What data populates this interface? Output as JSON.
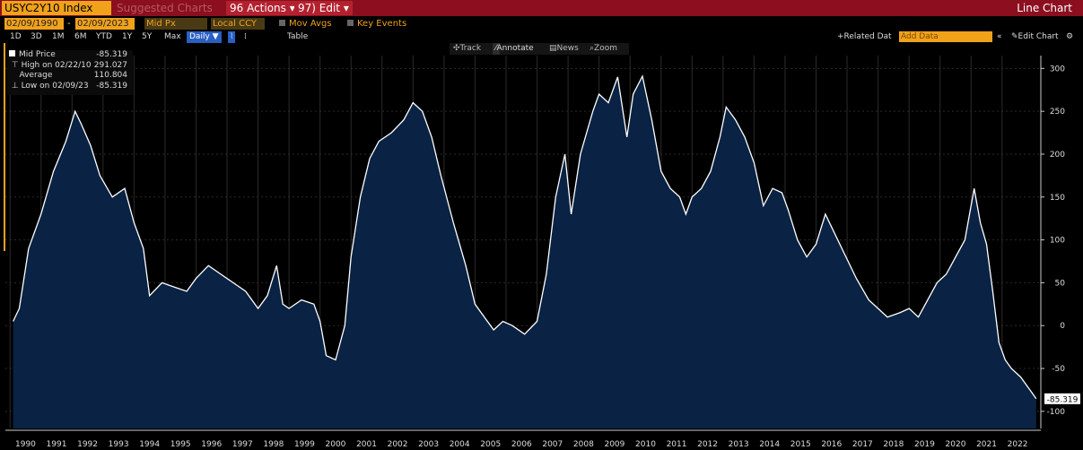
{
  "titlebar": {
    "ticker": "USYC2Y10 Index",
    "suggested": "Suggested Charts",
    "actions": "96 Actions ▾",
    "edit": "97) Edit ▾",
    "window_title": "Line Chart"
  },
  "controls": {
    "start_date": "02/09/1990",
    "end_date": "02/09/2023",
    "field": "Mid Px",
    "currency": "Local CCY",
    "mov_avgs": "Mov Avgs",
    "key_events": "Key Events",
    "ranges": [
      "1D",
      "3D",
      "1M",
      "6M",
      "YTD",
      "1Y",
      "5Y",
      "Max"
    ],
    "frequency": "Daily ▼",
    "table": "Table",
    "related_data": "Related Dat",
    "add_data_placeholder": "Add Data",
    "edit_chart": "Edit Chart"
  },
  "chart_tools": {
    "track": "Track",
    "annotate": "Annotate",
    "news": "News",
    "zoom": "Zoom"
  },
  "legend": {
    "mid_price_label": "Mid Price",
    "mid_price_value": "-85.319",
    "high_label": "High on 02/22/10",
    "high_value": "291.027",
    "average_label": "Average",
    "average_value": "110.804",
    "low_label": "Low on 02/09/23",
    "low_value": "-85.319"
  },
  "last_value_tag": "-85.319",
  "colors": {
    "titlebar": "#8b0f1f",
    "accent_orange": "#f0a21b",
    "area_fill": "#0a2344",
    "line": "#ffffff",
    "grid": "#2b2b2b"
  },
  "chart_data": {
    "type": "area",
    "series": [
      {
        "name": "Mid Price",
        "x": [
          1990.1,
          1990.3,
          1990.6,
          1991.0,
          1991.4,
          1991.8,
          1992.1,
          1992.3,
          1992.6,
          1992.9,
          1993.3,
          1993.7,
          1994.0,
          1994.3,
          1994.5,
          1994.9,
          1995.3,
          1995.7,
          1996.0,
          1996.4,
          1996.8,
          1997.2,
          1997.6,
          1998.0,
          1998.3,
          1998.6,
          1998.8,
          1999.0,
          1999.4,
          1999.8,
          2000.0,
          2000.2,
          2000.5,
          2000.8,
          2001.0,
          2001.3,
          2001.6,
          2001.9,
          2002.3,
          2002.7,
          2003.0,
          2003.3,
          2003.6,
          2003.9,
          2004.3,
          2004.7,
          2005.0,
          2005.3,
          2005.6,
          2005.9,
          2006.2,
          2006.6,
          2007.0,
          2007.3,
          2007.6,
          2007.9,
          2008.1,
          2008.4,
          2008.8,
          2009.0,
          2009.3,
          2009.6,
          2009.9,
          2010.1,
          2010.4,
          2010.7,
          2011.0,
          2011.3,
          2011.6,
          2011.8,
          2012.0,
          2012.3,
          2012.6,
          2012.9,
          2013.1,
          2013.4,
          2013.7,
          2014.0,
          2014.3,
          2014.6,
          2014.9,
          2015.1,
          2015.4,
          2015.7,
          2016.0,
          2016.3,
          2016.5,
          2016.9,
          2017.3,
          2017.7,
          2018.0,
          2018.3,
          2018.7,
          2019.0,
          2019.3,
          2019.6,
          2019.9,
          2020.2,
          2020.5,
          2020.8,
          2021.1,
          2021.3,
          2021.5,
          2021.7,
          2021.9,
          2022.1,
          2022.3,
          2022.6,
          2022.9,
          2023.1
        ],
        "y": [
          5,
          20,
          90,
          130,
          180,
          215,
          250,
          235,
          210,
          175,
          150,
          160,
          120,
          90,
          35,
          50,
          45,
          40,
          55,
          70,
          60,
          50,
          40,
          20,
          35,
          70,
          25,
          20,
          30,
          25,
          5,
          -35,
          -40,
          0,
          80,
          150,
          195,
          215,
          225,
          240,
          260,
          250,
          220,
          175,
          120,
          70,
          25,
          10,
          -5,
          5,
          0,
          -10,
          5,
          60,
          150,
          200,
          130,
          200,
          250,
          270,
          260,
          290,
          220,
          270,
          291,
          240,
          180,
          160,
          150,
          130,
          150,
          160,
          180,
          220,
          255,
          240,
          220,
          190,
          140,
          160,
          155,
          135,
          100,
          80,
          95,
          130,
          115,
          85,
          55,
          30,
          20,
          10,
          15,
          20,
          10,
          30,
          50,
          60,
          80,
          100,
          160,
          120,
          95,
          40,
          -20,
          -40,
          -50,
          -60,
          -75,
          -85.319
        ]
      }
    ],
    "xticks": [
      "1990",
      "1991",
      "1992",
      "1993",
      "1994",
      "1995",
      "1996",
      "1997",
      "1998",
      "1999",
      "2000",
      "2001",
      "2002",
      "2003",
      "2004",
      "2005",
      "2006",
      "2007",
      "2008",
      "2009",
      "2010",
      "2011",
      "2012",
      "2013",
      "2014",
      "2015",
      "2016",
      "2017",
      "2018",
      "2019",
      "2020",
      "2021",
      "2022"
    ],
    "yticks": [
      -100,
      -50,
      0,
      50,
      100,
      150,
      200,
      250,
      300
    ],
    "xlim": [
      1989.85,
      2023.25
    ],
    "ylim": [
      -120,
      315
    ],
    "grid": true,
    "title": "",
    "xlabel": "",
    "ylabel": ""
  }
}
